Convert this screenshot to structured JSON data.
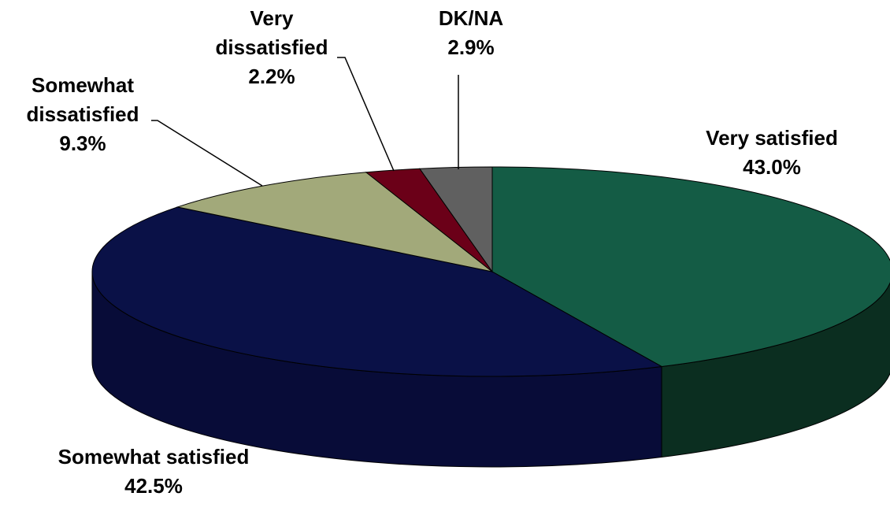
{
  "chart_data": {
    "type": "pie",
    "categories": [
      "Very satisfied",
      "Somewhat satisfied",
      "Somewhat dissatisfied",
      "Very dissatisfied",
      "DK/NA"
    ],
    "values": [
      43.0,
      42.5,
      9.3,
      2.2,
      2.9
    ],
    "value_labels": [
      "43.0%",
      "42.5%",
      "9.3%",
      "2.2%",
      "2.9%"
    ],
    "colors": [
      "#145c45",
      "#0a1147",
      "#a2a97a",
      "#6b0018",
      "#606060"
    ],
    "side_colors": [
      "#0b2e20",
      "#080c38",
      "#7f855e",
      "#4a0010",
      "#444444"
    ]
  }
}
